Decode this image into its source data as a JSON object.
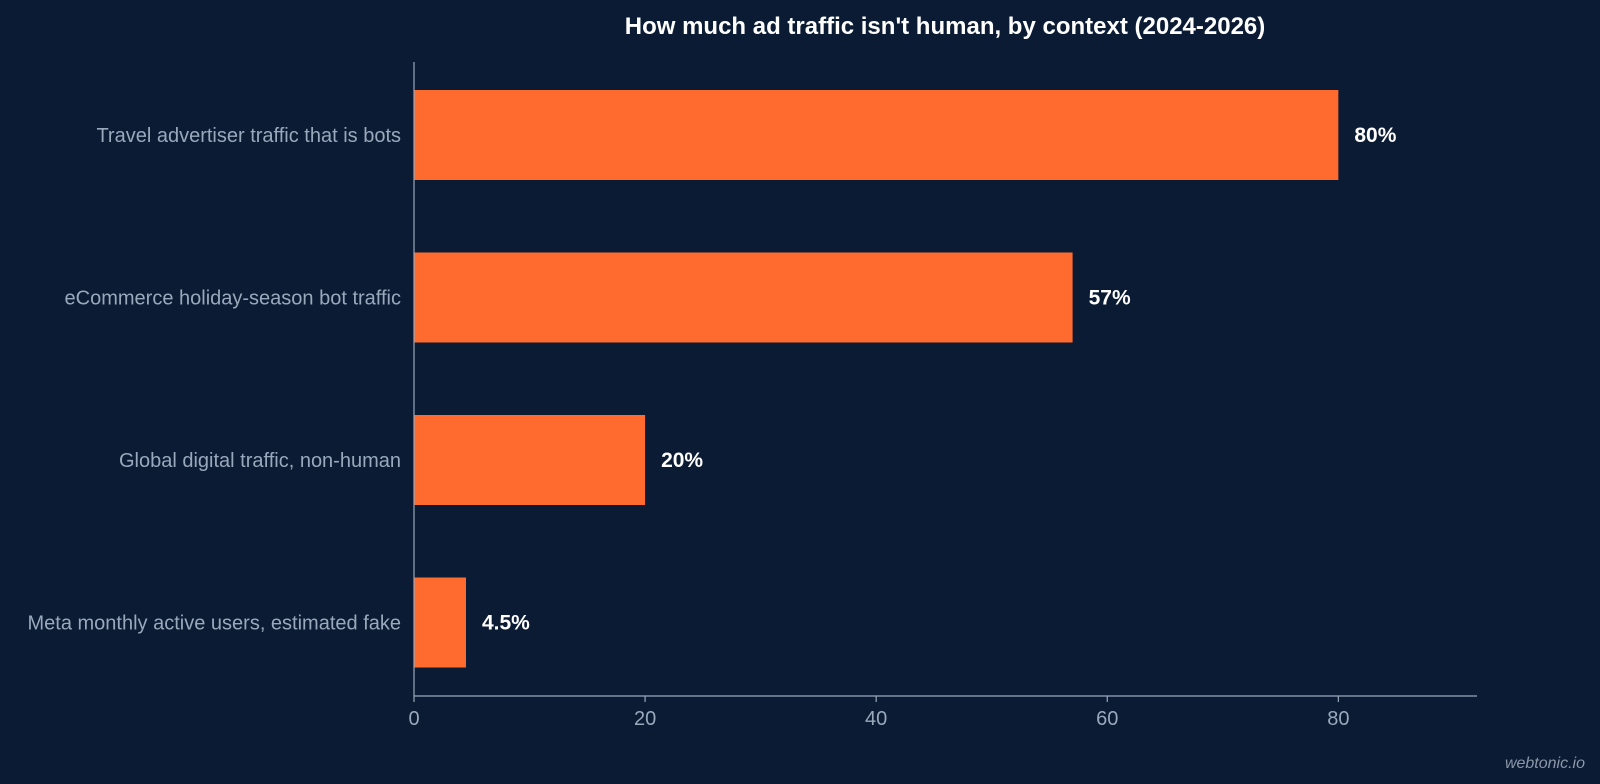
{
  "colors": {
    "background": "#0b1b33",
    "bar": "#ff6b2e",
    "axis": "#9aa8bb",
    "value_label": "#ffffff"
  },
  "watermark": "webtonic.io",
  "chart_data": {
    "type": "bar",
    "orientation": "horizontal",
    "title": "How much ad traffic isn't human, by context (2024-2026)",
    "xlabel": "",
    "ylabel": "",
    "categories": [
      "Travel advertiser traffic that is bots",
      "eCommerce holiday-season bot traffic",
      "Global digital traffic, non-human",
      "Meta monthly active users, estimated fake"
    ],
    "values": [
      80,
      57,
      20,
      4.5
    ],
    "value_labels": [
      "80%",
      "57%",
      "20%",
      "4.5%"
    ],
    "xlim": [
      0,
      92
    ],
    "xticks": [
      0,
      20,
      40,
      60,
      80
    ],
    "grid": false,
    "legend": "none"
  }
}
